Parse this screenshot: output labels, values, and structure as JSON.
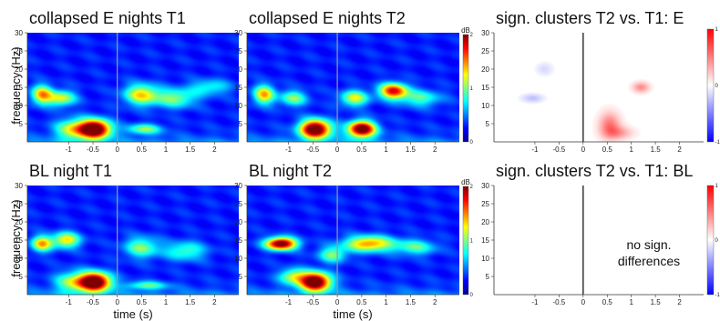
{
  "chart_data": [
    {
      "type": "heatmap",
      "id": "p1",
      "title": "collapsed E nights T1",
      "style": "spectrum",
      "ylabel": "frequency (Hz)",
      "xlabel": "",
      "colorbar": {
        "unit": "dB",
        "ticks": [
          "2",
          "1",
          "0"
        ]
      },
      "blobs": [
        {
          "t": -0.45,
          "f": 3.5,
          "st": 0.22,
          "sf": 1.8,
          "a": 1.0
        },
        {
          "t": -0.9,
          "f": 3.5,
          "st": 0.25,
          "sf": 2.0,
          "a": 0.45
        },
        {
          "t": -1.55,
          "f": 13,
          "st": 0.15,
          "sf": 1.8,
          "a": 0.55
        },
        {
          "t": -1.15,
          "f": 12,
          "st": 0.2,
          "sf": 1.5,
          "a": 0.45
        },
        {
          "t": 0.5,
          "f": 13,
          "st": 0.25,
          "sf": 2.0,
          "a": 0.5
        },
        {
          "t": 1.2,
          "f": 12,
          "st": 0.3,
          "sf": 1.8,
          "a": 0.35
        },
        {
          "t": 0.55,
          "f": 3.5,
          "st": 0.25,
          "sf": 1.0,
          "a": 0.35
        },
        {
          "t": 1.9,
          "f": 15,
          "st": 0.3,
          "sf": 1.5,
          "a": 0.25
        }
      ]
    },
    {
      "type": "heatmap",
      "id": "p2",
      "title": "collapsed E nights T2",
      "style": "spectrum",
      "ylabel": "",
      "xlabel": "",
      "colorbar": {
        "unit": "dB",
        "ticks": [
          "2",
          "1",
          "0"
        ]
      },
      "blobs": [
        {
          "t": -0.45,
          "f": 3.5,
          "st": 0.22,
          "sf": 1.8,
          "a": 1.0
        },
        {
          "t": 0.5,
          "f": 3.5,
          "st": 0.2,
          "sf": 1.6,
          "a": 0.95
        },
        {
          "t": -1.5,
          "f": 13,
          "st": 0.15,
          "sf": 1.8,
          "a": 0.55
        },
        {
          "t": 1.15,
          "f": 14,
          "st": 0.2,
          "sf": 1.5,
          "a": 0.75
        },
        {
          "t": 0.35,
          "f": 12,
          "st": 0.2,
          "sf": 1.5,
          "a": 0.45
        },
        {
          "t": -0.9,
          "f": 12,
          "st": 0.2,
          "sf": 1.5,
          "a": 0.35
        },
        {
          "t": 1.7,
          "f": 12,
          "st": 0.3,
          "sf": 1.6,
          "a": 0.3
        }
      ]
    },
    {
      "type": "heatmap",
      "id": "p3",
      "title": "sign. clusters T2 vs. T1: E",
      "style": "clusters",
      "ylabel": "",
      "xlabel": "",
      "colorbar": {
        "unit": "",
        "ticks": [
          "1",
          "0",
          "-1"
        ]
      },
      "clusters": [
        {
          "t": 0.55,
          "f": 4.5,
          "st": 0.15,
          "sf": 2.5,
          "a": 0.55
        },
        {
          "t": 0.75,
          "f": 2.5,
          "st": 0.2,
          "sf": 1.2,
          "a": 0.35
        },
        {
          "t": 1.2,
          "f": 15,
          "st": 0.12,
          "sf": 1.0,
          "a": 0.45
        },
        {
          "t": -1.05,
          "f": 12,
          "st": 0.15,
          "sf": 0.8,
          "a": -0.25
        },
        {
          "t": -0.8,
          "f": 20,
          "st": 0.12,
          "sf": 1.2,
          "a": -0.15
        }
      ]
    },
    {
      "type": "heatmap",
      "id": "p4",
      "title": "BL night T1",
      "style": "spectrum",
      "ylabel": "frequency (Hz)",
      "xlabel": "time (s)",
      "colorbar": {
        "unit": "dB",
        "ticks": [
          "2",
          "1",
          "0"
        ]
      },
      "blobs": [
        {
          "t": -0.45,
          "f": 3.5,
          "st": 0.22,
          "sf": 1.8,
          "a": 1.0
        },
        {
          "t": -0.9,
          "f": 3.5,
          "st": 0.25,
          "sf": 2.0,
          "a": 0.4
        },
        {
          "t": -1.55,
          "f": 14,
          "st": 0.15,
          "sf": 1.5,
          "a": 0.55
        },
        {
          "t": -1.05,
          "f": 15,
          "st": 0.2,
          "sf": 1.5,
          "a": 0.5
        },
        {
          "t": 0.5,
          "f": 13,
          "st": 0.25,
          "sf": 2.0,
          "a": 0.35
        },
        {
          "t": 1.4,
          "f": 12,
          "st": 0.3,
          "sf": 1.8,
          "a": 0.3
        },
        {
          "t": 0.6,
          "f": 2.5,
          "st": 0.3,
          "sf": 0.8,
          "a": 0.3
        }
      ]
    },
    {
      "type": "heatmap",
      "id": "p5",
      "title": "BL night T2",
      "style": "spectrum",
      "ylabel": "",
      "xlabel": "time (s)",
      "colorbar": {
        "unit": "dB",
        "ticks": [
          "2",
          "1",
          "0"
        ]
      },
      "blobs": [
        {
          "t": -0.45,
          "f": 3.5,
          "st": 0.22,
          "sf": 1.8,
          "a": 1.0
        },
        {
          "t": -1.15,
          "f": 14,
          "st": 0.22,
          "sf": 1.2,
          "a": 0.95
        },
        {
          "t": 0.65,
          "f": 14,
          "st": 0.35,
          "sf": 1.5,
          "a": 0.6
        },
        {
          "t": -0.9,
          "f": 5,
          "st": 0.2,
          "sf": 1.5,
          "a": 0.4
        },
        {
          "t": -0.1,
          "f": 11,
          "st": 0.2,
          "sf": 1.5,
          "a": 0.35
        },
        {
          "t": 1.6,
          "f": 13,
          "st": 0.3,
          "sf": 1.5,
          "a": 0.3
        }
      ]
    },
    {
      "type": "heatmap",
      "id": "p6",
      "title": "sign. clusters T2 vs. T1: BL",
      "style": "clusters",
      "ylabel": "",
      "xlabel": "",
      "colorbar": {
        "unit": "",
        "ticks": [
          "1",
          "0",
          "-1"
        ]
      },
      "clusters": [],
      "annotation": [
        "no sign.",
        "differences"
      ]
    }
  ],
  "axes": {
    "x_ticks": [
      -1,
      -0.5,
      0,
      0.5,
      1,
      1.5,
      2
    ],
    "x_tick_labels": [
      "-1",
      "-0.5",
      "0",
      "0.5",
      "1",
      "1.5",
      "2"
    ],
    "xlim": [
      -1.85,
      2.5
    ],
    "y_ticks": [
      5,
      10,
      15,
      20,
      25,
      30
    ],
    "y_tick_labels": [
      "5",
      "10",
      "15",
      "20",
      "25",
      "30"
    ],
    "ylim": [
      0,
      30
    ],
    "event_line_at": 0
  }
}
